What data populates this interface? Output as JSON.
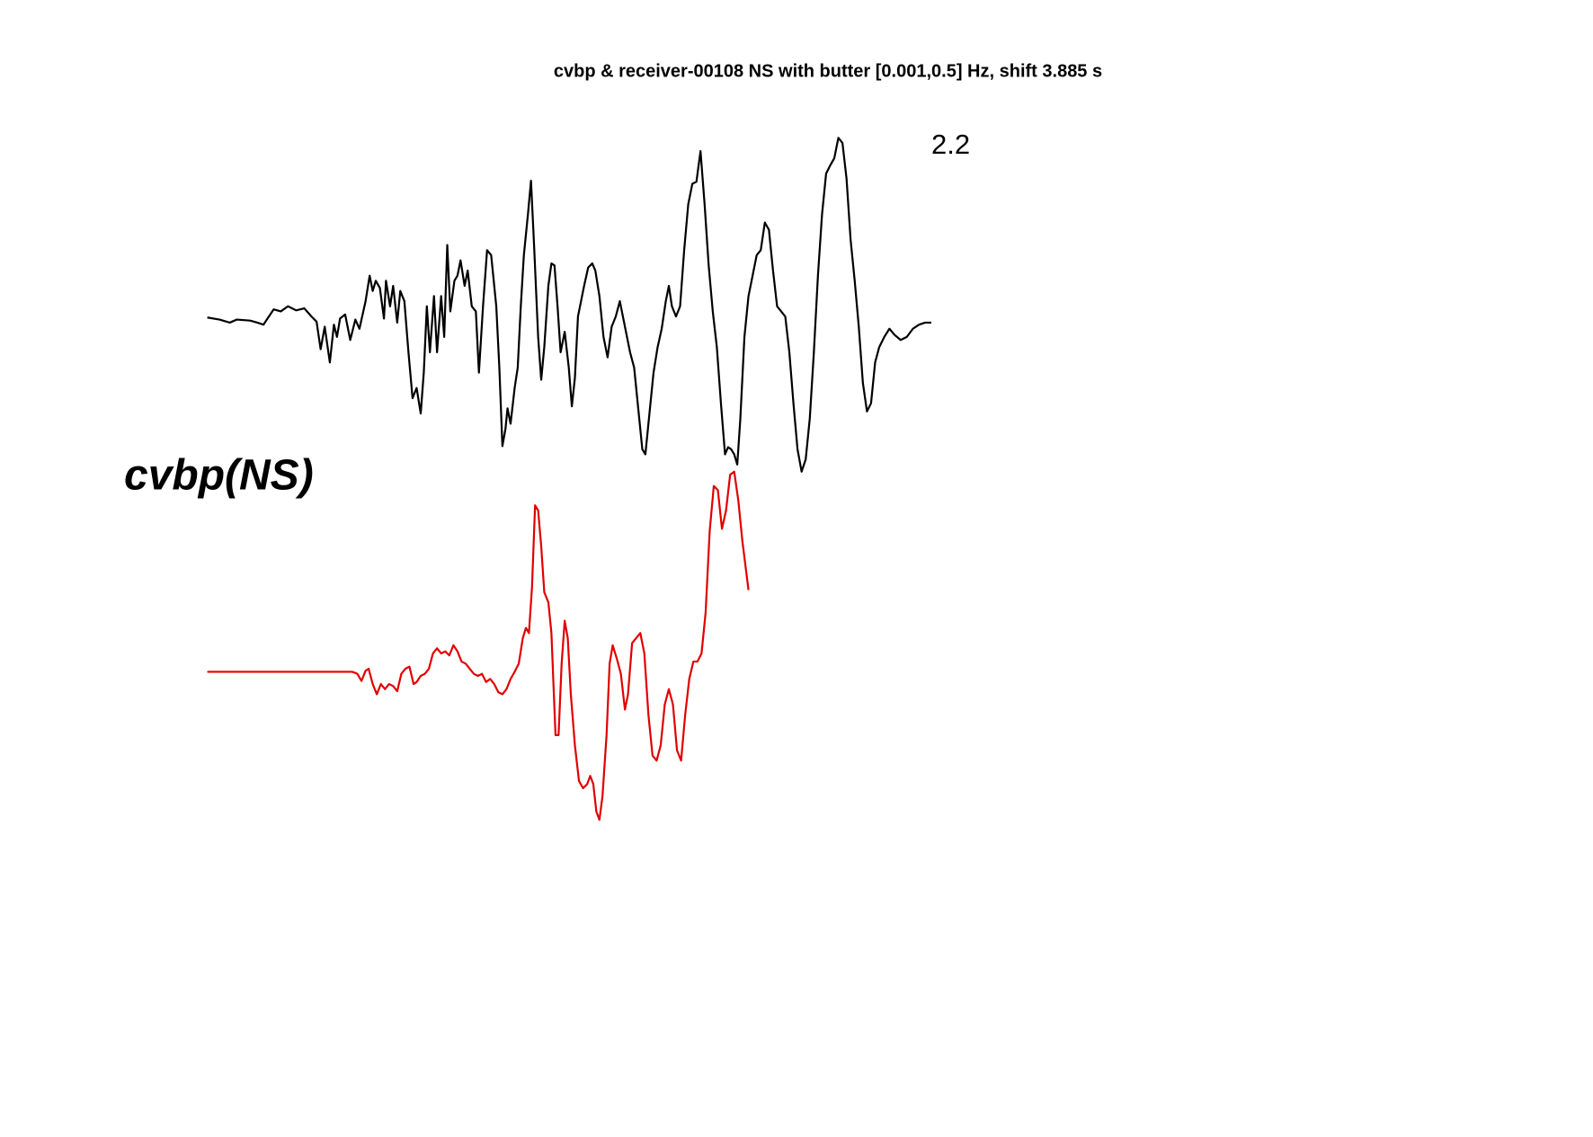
{
  "chart_data": {
    "type": "line",
    "title": "cvbp & receiver-00108 NS with butter [0.001,0.5] Hz, shift 3.885 s",
    "annotation": "2.2",
    "label": "cvbp(NS)",
    "series": [
      {
        "color": "#000000",
        "x": [
          0,
          12,
          22,
          29,
          42,
          49,
          55,
          59,
          65,
          72,
          79,
          87,
          95,
          102,
          107,
          111,
          115,
          120,
          124,
          127,
          130,
          135,
          140,
          145,
          149,
          155,
          159,
          162,
          165,
          169,
          173,
          175,
          179,
          182,
          186,
          189,
          193,
          197,
          201,
          205,
          209,
          212,
          215,
          218,
          222,
          225,
          229,
          232,
          235,
          238,
          242,
          245,
          248,
          252,
          255,
          259,
          263,
          266,
          270,
          274,
          278,
          283,
          286,
          289,
          292,
          294,
          297,
          301,
          304,
          307,
          310,
          314,
          317,
          320,
          324,
          327,
          330,
          334,
          337,
          340,
          343,
          346,
          350,
          354,
          357,
          360,
          363,
          366,
          369,
          373,
          377,
          380,
          384,
          388,
          392,
          396,
          400,
          404,
          409,
          414,
          418,
          422,
          426,
          429,
          433,
          437,
          441,
          445,
          449,
          452,
          455,
          459,
          463,
          467,
          471,
          475,
          479,
          483,
          487,
          491,
          495,
          499,
          503,
          507,
          510,
          513,
          516,
          519,
          522,
          526,
          530,
          534,
          538,
          542,
          546,
          550,
          554,
          558,
          562,
          566,
          570,
          574,
          578,
          582,
          586,
          590,
          594,
          598,
          602,
          606,
          610,
          614,
          618,
          622,
          626,
          630,
          634,
          638,
          642,
          646,
          650,
          654,
          658,
          663,
          668,
          673,
          679,
          685,
          691,
          697,
          703,
          709
        ],
        "values": [
          2,
          0,
          -3,
          0,
          -1,
          -3,
          -5,
          1,
          10,
          8,
          13,
          9,
          11,
          3,
          -2,
          -29,
          -7,
          -42,
          -5,
          -17,
          1,
          5,
          -20,
          0,
          -9,
          18,
          43,
          28,
          38,
          31,
          1,
          38,
          13,
          33,
          -3,
          28,
          18,
          -32,
          -77,
          -67,
          -92,
          -52,
          13,
          -32,
          23,
          -32,
          23,
          -17,
          73,
          8,
          38,
          43,
          58,
          33,
          48,
          13,
          8,
          -52,
          13,
          68,
          63,
          13,
          -47,
          -124,
          -107,
          -87,
          -102,
          -67,
          -47,
          13,
          63,
          103,
          136,
          73,
          -17,
          -59,
          -27,
          33,
          55,
          53,
          13,
          -32,
          -12,
          -47,
          -85,
          -57,
          3,
          18,
          33,
          51,
          55,
          48,
          23,
          -17,
          -37,
          -7,
          3,
          18,
          -7,
          -32,
          -47,
          -87,
          -127,
          -132,
          -92,
          -52,
          -27,
          -9,
          18,
          33,
          13,
          3,
          13,
          68,
          113,
          133,
          135,
          165,
          113,
          53,
          8,
          -27,
          -82,
          -132,
          -125,
          -127,
          -132,
          -142,
          -97,
          -17,
          23,
          43,
          63,
          68,
          95,
          88,
          48,
          13,
          8,
          3,
          -32,
          -82,
          -127,
          -149,
          -137,
          -97,
          -32,
          43,
          103,
          143,
          151,
          158,
          178,
          173,
          138,
          78,
          38,
          -7,
          -62,
          -90,
          -82,
          -42,
          -27,
          -17,
          -9,
          -15,
          -20,
          -17,
          -9,
          -5,
          -3,
          -3
        ]
      },
      {
        "color": "#e00000",
        "x": [
          0,
          142,
          147,
          151,
          155,
          158,
          162,
          166,
          170,
          174,
          178,
          182,
          186,
          190,
          194,
          198,
          202,
          205,
          209,
          213,
          217,
          221,
          225,
          229,
          233,
          237,
          241,
          245,
          249,
          253,
          257,
          261,
          265,
          269,
          273,
          277,
          281,
          285,
          289,
          293,
          297,
          301,
          305,
          309,
          312,
          315,
          318,
          321,
          324,
          327,
          330,
          334,
          337,
          341,
          344,
          347,
          350,
          353,
          356,
          360,
          364,
          368,
          372,
          375,
          378,
          381,
          384,
          387,
          391,
          394,
          397,
          401,
          405,
          409,
          412,
          416,
          420,
          424,
          428,
          432,
          436,
          440,
          444,
          448,
          452,
          456,
          460,
          464,
          468,
          472,
          476,
          480,
          484,
          488,
          492,
          496,
          500,
          504,
          508,
          512,
          516,
          520,
          524,
          530
        ],
        "values": [
          0,
          0,
          -2,
          -9,
          1,
          3,
          -12,
          -22,
          -12,
          -17,
          -12,
          -14,
          -19,
          -2,
          3,
          5,
          -12,
          -10,
          -4,
          -2,
          3,
          18,
          23,
          18,
          20,
          16,
          26,
          20,
          10,
          8,
          3,
          -2,
          -4,
          -2,
          -10,
          -7,
          -12,
          -20,
          -22,
          -17,
          -7,
          0,
          8,
          33,
          43,
          38,
          83,
          163,
          158,
          123,
          78,
          68,
          38,
          -62,
          -62,
          8,
          50,
          33,
          -22,
          -72,
          -107,
          -114,
          -110,
          -102,
          -110,
          -137,
          -145,
          -122,
          -62,
          8,
          26,
          13,
          -2,
          -37,
          -22,
          28,
          33,
          38,
          18,
          -42,
          -82,
          -87,
          -72,
          -32,
          -17,
          -32,
          -77,
          -87,
          -42,
          -7,
          10,
          10,
          18,
          58,
          138,
          182,
          178,
          140,
          158,
          193,
          196,
          168,
          128,
          80
        ]
      }
    ]
  }
}
